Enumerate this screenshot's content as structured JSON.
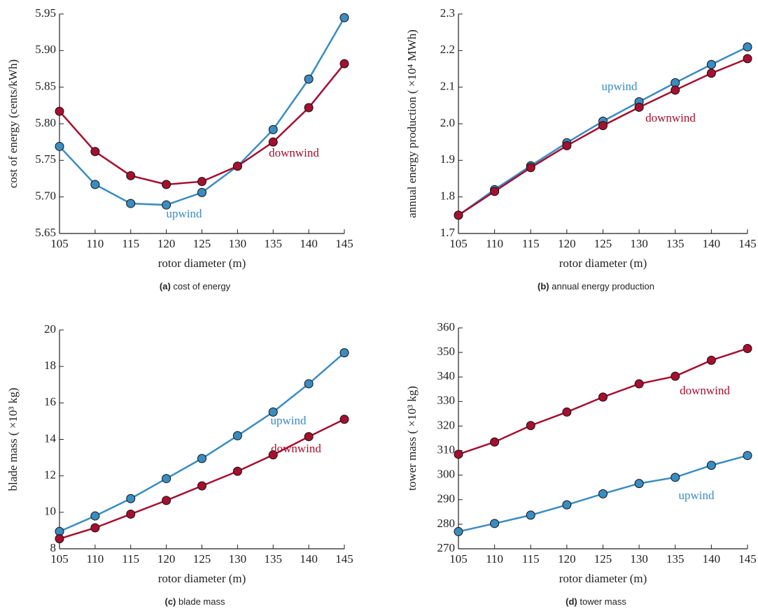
{
  "chart_data": [
    {
      "type": "line",
      "caption_tag": "(a)",
      "caption": "cost of energy",
      "x_label": "rotor diameter (m)",
      "y_label": "cost of energy (cents/kWh)",
      "x": [
        105,
        110,
        115,
        120,
        125,
        130,
        135,
        140,
        145
      ],
      "xlim": [
        105,
        145
      ],
      "xticks": [
        105,
        110,
        115,
        120,
        125,
        130,
        135,
        140,
        145
      ],
      "ylim": [
        5.65,
        5.95
      ],
      "yticks": [
        5.65,
        {
          "value": 5.7,
          "label": "5.70"
        },
        5.75,
        {
          "value": 5.8,
          "label": "5.80"
        },
        5.85,
        {
          "value": 5.9,
          "label": "5.90"
        },
        5.95
      ],
      "series": [
        {
          "name": "upwind",
          "color": "#3a8cc1",
          "values": [
            5.769,
            5.717,
            5.691,
            5.689,
            5.706,
            5.742,
            5.792,
            5.861,
            5.945
          ]
        },
        {
          "name": "downwind",
          "color": "#a50f30",
          "values": [
            5.817,
            5.762,
            5.729,
            5.717,
            5.721,
            5.742,
            5.775,
            5.822,
            5.882
          ]
        }
      ]
    },
    {
      "type": "line",
      "caption_tag": "(b)",
      "caption": "annual energy production",
      "x_label": "rotor diameter (m)",
      "y_label": "annual energy production ( ×10⁴  MWh)",
      "x": [
        105,
        110,
        115,
        120,
        125,
        130,
        135,
        140,
        145
      ],
      "xlim": [
        105,
        145
      ],
      "xticks": [
        105,
        110,
        115,
        120,
        125,
        130,
        135,
        140,
        145
      ],
      "ylim": [
        1.7,
        2.3
      ],
      "yticks": [
        1.7,
        1.8,
        1.9,
        {
          "value": 2,
          "label": "2.0"
        },
        2.1,
        2.2,
        2.3
      ],
      "series": [
        {
          "name": "upwind",
          "color": "#3a8cc1",
          "values": [
            1.75,
            1.82,
            1.885,
            1.948,
            2.007,
            2.06,
            2.112,
            2.162,
            2.21
          ]
        },
        {
          "name": "downwind",
          "color": "#a50f30",
          "values": [
            1.75,
            1.815,
            1.88,
            1.94,
            1.995,
            2.045,
            2.092,
            2.138,
            2.178
          ]
        }
      ]
    },
    {
      "type": "line",
      "caption_tag": "(c)",
      "caption": "blade mass",
      "x_label": "rotor diameter (m)",
      "y_label": "blade mass ( ×10³  kg)",
      "x": [
        105,
        110,
        115,
        120,
        125,
        130,
        135,
        140,
        145
      ],
      "xlim": [
        105,
        145
      ],
      "xticks": [
        105,
        110,
        115,
        120,
        125,
        130,
        135,
        140,
        145
      ],
      "ylim": [
        8,
        20
      ],
      "yticks": [
        8,
        10,
        12,
        14,
        16,
        18,
        20
      ],
      "series": [
        {
          "name": "upwind",
          "color": "#3a8cc1",
          "values": [
            8.95,
            9.8,
            10.75,
            11.85,
            12.95,
            14.2,
            15.5,
            17.05,
            18.75
          ]
        },
        {
          "name": "downwind",
          "color": "#a50f30",
          "values": [
            8.55,
            9.15,
            9.9,
            10.65,
            11.45,
            12.25,
            13.15,
            14.15,
            15.1
          ]
        }
      ]
    },
    {
      "type": "line",
      "caption_tag": "(d)",
      "caption": "tower mass",
      "x_label": "rotor diameter (m)",
      "y_label": "tower mass ( ×10³  kg)",
      "x": [
        105,
        110,
        115,
        120,
        125,
        130,
        135,
        140,
        145
      ],
      "xlim": [
        105,
        145
      ],
      "xticks": [
        105,
        110,
        115,
        120,
        125,
        130,
        135,
        140,
        145
      ],
      "ylim": [
        270,
        360
      ],
      "yticks": [
        270,
        280,
        290,
        300,
        310,
        320,
        330,
        340,
        350,
        360
      ],
      "series": [
        {
          "name": "upwind",
          "color": "#3a8cc1",
          "values": [
            277,
            280.3,
            283.7,
            287.9,
            292.4,
            296.6,
            299.1,
            304,
            308
          ]
        },
        {
          "name": "downwind",
          "color": "#a50f30",
          "values": [
            308.5,
            313.5,
            320.2,
            325.7,
            331.8,
            337.2,
            340.3,
            346.8,
            351.6
          ]
        }
      ]
    }
  ]
}
